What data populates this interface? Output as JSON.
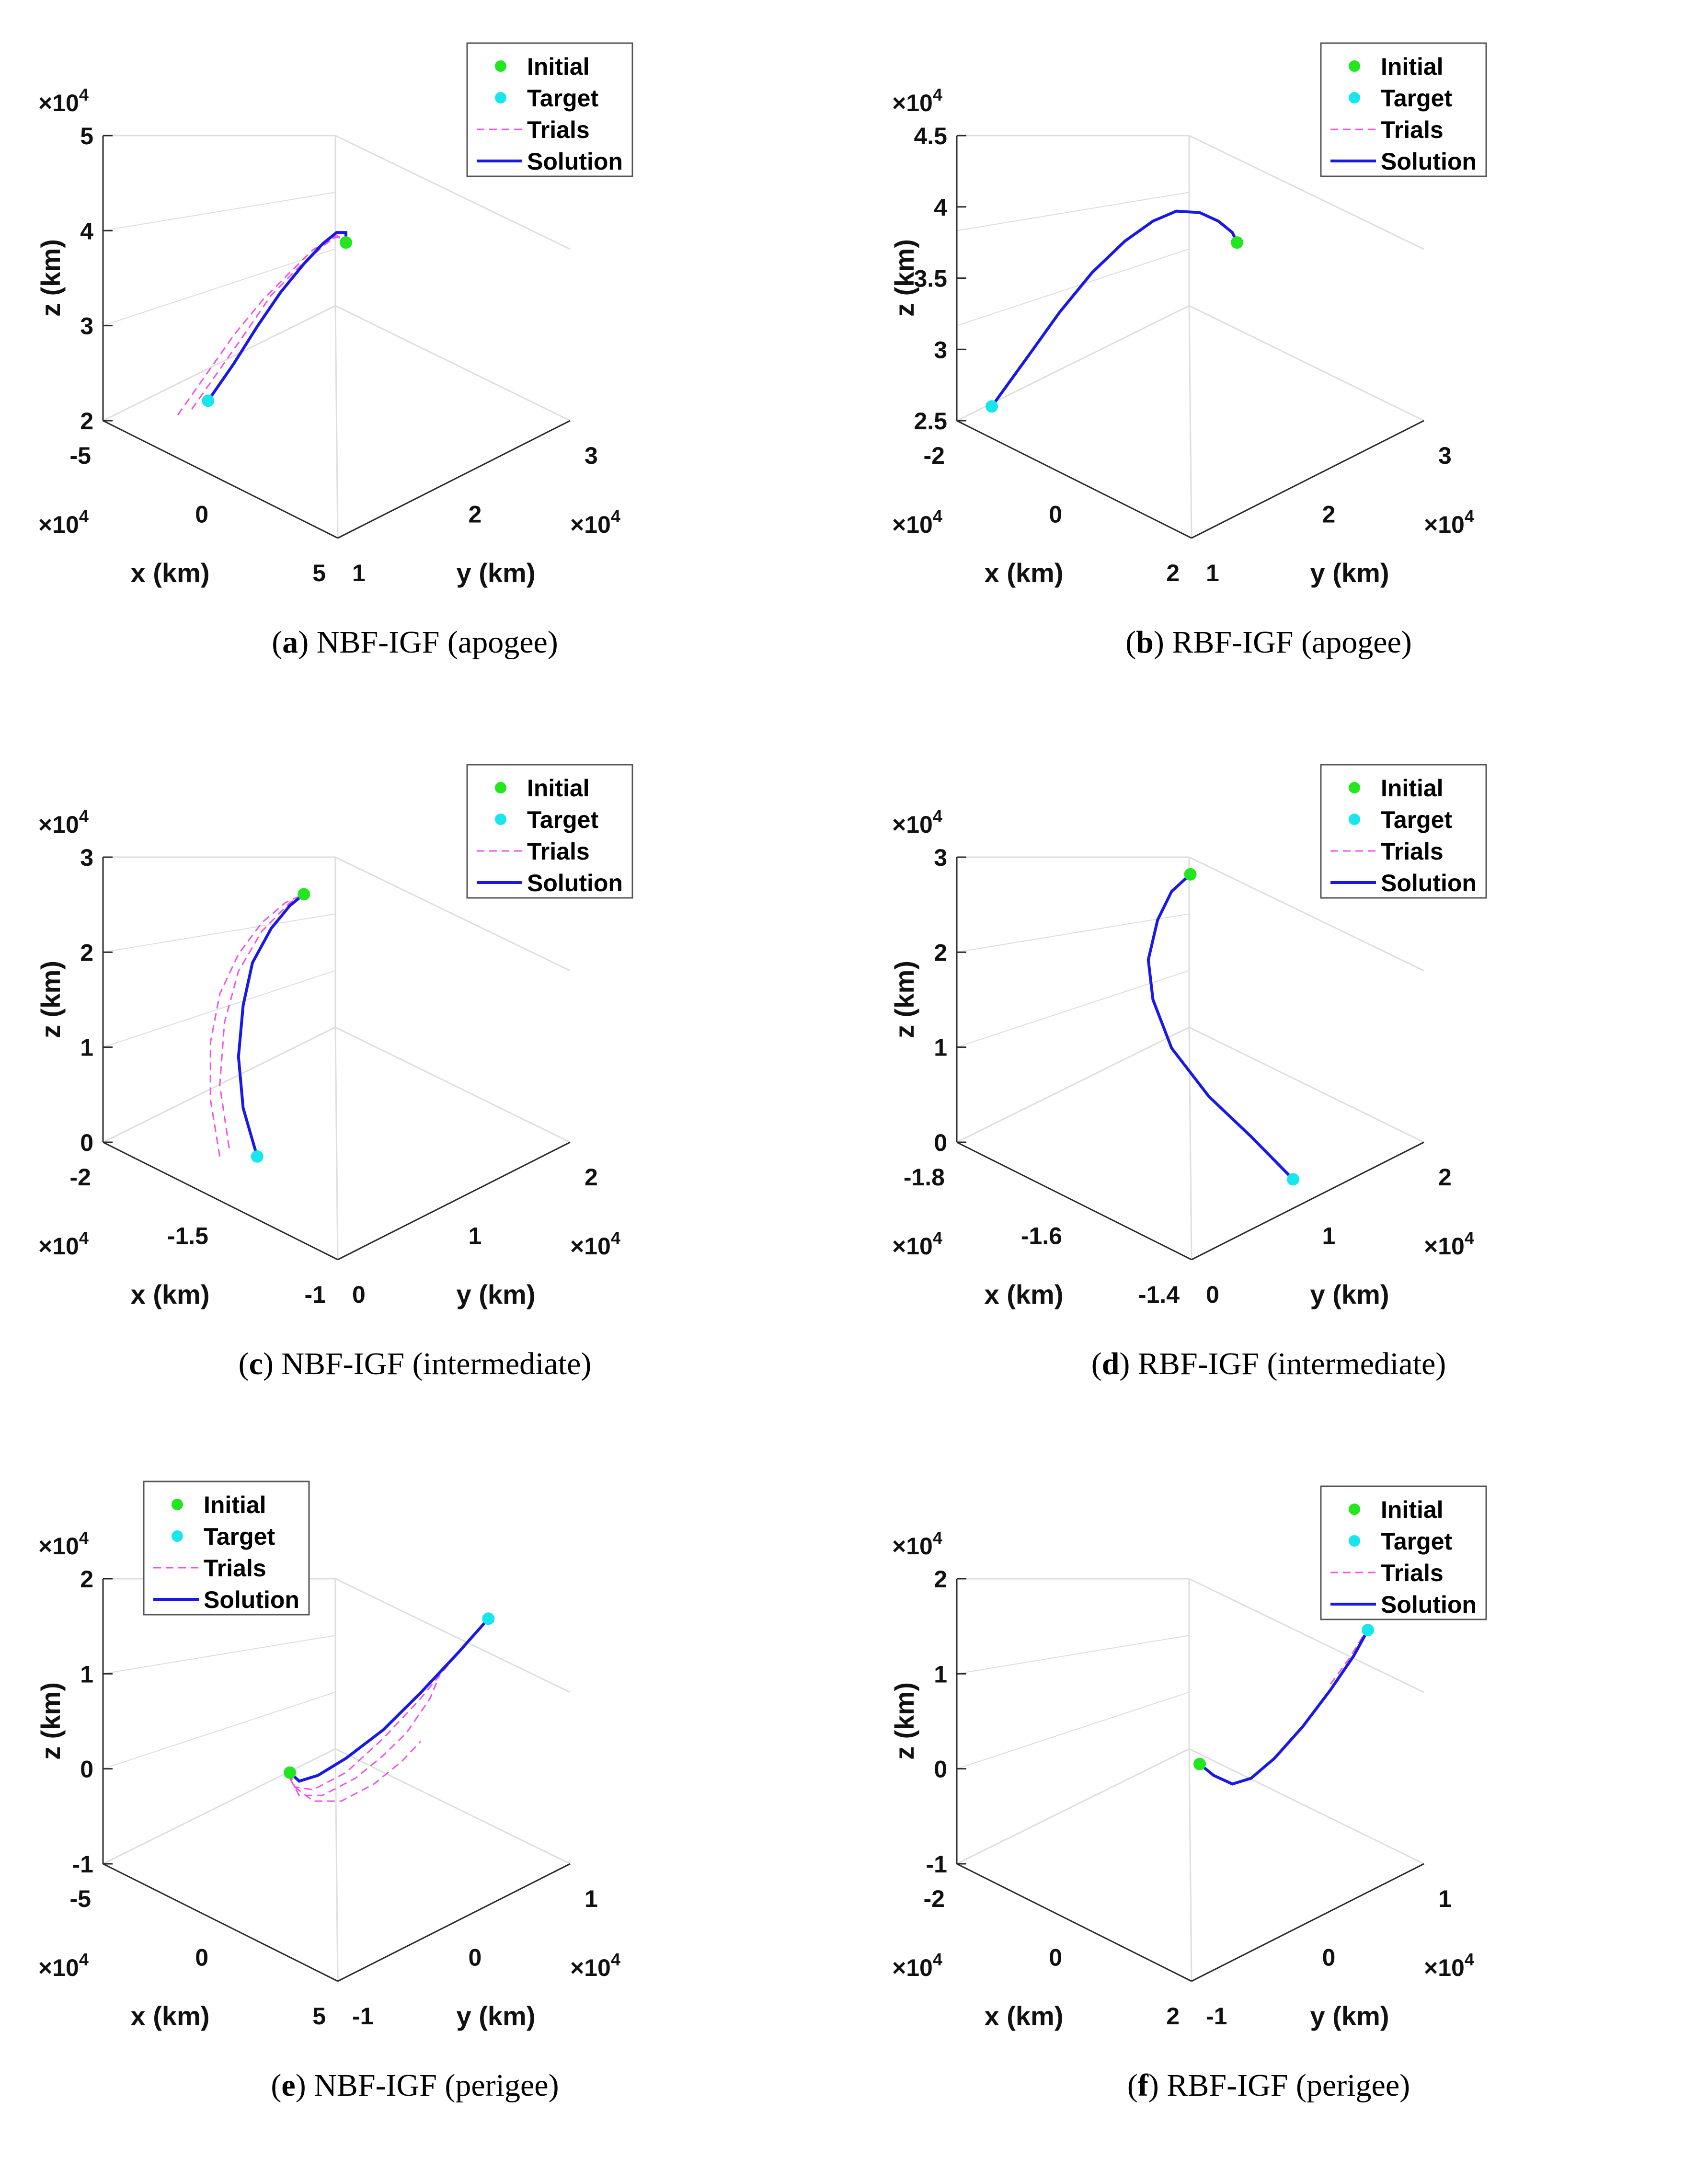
{
  "chart_data": [
    {
      "id": "a",
      "type": "line3d",
      "caption_letter": "a",
      "caption_text": "NBF-IGF (apogee)",
      "xlabel": "x (km)",
      "ylabel": "y (km)",
      "zlabel": "z (km)",
      "xticks": [
        "-5",
        "0",
        "5"
      ],
      "yticks": [
        "1",
        "2",
        "3"
      ],
      "zticks": [
        "2",
        "3",
        "4",
        "5"
      ],
      "x_exponent": "×10^4",
      "y_exponent": "×10^4",
      "z_exponent": "×10^4",
      "xlim": [
        -5,
        5
      ],
      "ylim": [
        1,
        3
      ],
      "zlim": [
        2,
        5
      ],
      "scale": 10000,
      "legend": [
        "Initial",
        "Target",
        "Trials",
        "Solution"
      ],
      "legend_position": "top-right",
      "initial": {
        "u": 0.52,
        "w": 0.625
      },
      "target": {
        "u": 0.225,
        "w": 0.07
      },
      "solution": [
        [
          0.225,
          0.07
        ],
        [
          0.28,
          0.2
        ],
        [
          0.33,
          0.33
        ],
        [
          0.38,
          0.45
        ],
        [
          0.43,
          0.55
        ],
        [
          0.47,
          0.62
        ],
        [
          0.5,
          0.66
        ],
        [
          0.52,
          0.66
        ],
        [
          0.52,
          0.625
        ]
      ],
      "trials": [
        [
          [
            0.16,
            0.02
          ],
          [
            0.22,
            0.16
          ],
          [
            0.28,
            0.3
          ],
          [
            0.34,
            0.42
          ],
          [
            0.4,
            0.52
          ],
          [
            0.45,
            0.6
          ],
          [
            0.49,
            0.64
          ],
          [
            0.51,
            0.645
          ],
          [
            0.52,
            0.625
          ]
        ],
        [
          [
            0.19,
            0.04
          ],
          [
            0.25,
            0.18
          ],
          [
            0.31,
            0.32
          ],
          [
            0.36,
            0.44
          ],
          [
            0.42,
            0.54
          ],
          [
            0.47,
            0.61
          ],
          [
            0.5,
            0.65
          ],
          [
            0.52,
            0.625
          ]
        ]
      ]
    },
    {
      "id": "b",
      "type": "line3d",
      "caption_letter": "b",
      "caption_text": "RBF-IGF (apogee)",
      "xlabel": "x (km)",
      "ylabel": "y (km)",
      "zlabel": "z (km)",
      "xticks": [
        "-2",
        "0",
        "2"
      ],
      "yticks": [
        "1",
        "2",
        "3"
      ],
      "zticks": [
        "2.5",
        "3",
        "3.5",
        "4",
        "4.5"
      ],
      "x_exponent": "×10^4",
      "y_exponent": "×10^4",
      "z_exponent": "×10^4",
      "xlim": [
        -2,
        2
      ],
      "ylim": [
        1,
        3
      ],
      "zlim": [
        2.5,
        4.5
      ],
      "scale": 10000,
      "legend": [
        "Initial",
        "Target",
        "Trials",
        "Solution"
      ],
      "legend_position": "top-right",
      "initial": {
        "u": 0.6,
        "w": 0.625
      },
      "target": {
        "u": 0.075,
        "w": 0.05
      },
      "solution": [
        [
          0.075,
          0.05
        ],
        [
          0.15,
          0.22
        ],
        [
          0.22,
          0.38
        ],
        [
          0.29,
          0.52
        ],
        [
          0.36,
          0.63
        ],
        [
          0.42,
          0.7
        ],
        [
          0.47,
          0.735
        ],
        [
          0.52,
          0.73
        ],
        [
          0.56,
          0.7
        ],
        [
          0.59,
          0.66
        ],
        [
          0.6,
          0.625
        ]
      ],
      "trials": [
        [
          [
            0.075,
            0.05
          ],
          [
            0.15,
            0.22
          ],
          [
            0.22,
            0.38
          ],
          [
            0.29,
            0.52
          ],
          [
            0.36,
            0.63
          ],
          [
            0.42,
            0.7
          ],
          [
            0.47,
            0.735
          ],
          [
            0.52,
            0.73
          ],
          [
            0.56,
            0.7
          ],
          [
            0.59,
            0.66
          ],
          [
            0.6,
            0.625
          ]
        ]
      ]
    },
    {
      "id": "c",
      "type": "line3d",
      "caption_letter": "c",
      "caption_text": "NBF-IGF (intermediate)",
      "xlabel": "x (km)",
      "ylabel": "y (km)",
      "zlabel": "z (km)",
      "xticks": [
        "-2",
        "-1.5",
        "-1"
      ],
      "yticks": [
        "0",
        "1",
        "2"
      ],
      "zticks": [
        "0",
        "1",
        "2",
        "3"
      ],
      "x_exponent": "×10^4",
      "y_exponent": "×10^4",
      "z_exponent": "×10^4",
      "xlim": [
        -2,
        -1
      ],
      "ylim": [
        0,
        2
      ],
      "zlim": [
        0,
        3
      ],
      "scale": 10000,
      "legend": [
        "Initial",
        "Target",
        "Trials",
        "Solution"
      ],
      "legend_position": "top-right",
      "initial": {
        "u": 0.43,
        "w": 0.87
      },
      "target": {
        "u": 0.33,
        "w": -0.05
      },
      "solution": [
        [
          0.33,
          -0.05
        ],
        [
          0.3,
          0.12
        ],
        [
          0.29,
          0.3
        ],
        [
          0.3,
          0.48
        ],
        [
          0.32,
          0.63
        ],
        [
          0.36,
          0.75
        ],
        [
          0.4,
          0.83
        ],
        [
          0.43,
          0.87
        ]
      ],
      "trials": [
        [
          [
            0.25,
            -0.05
          ],
          [
            0.23,
            0.15
          ],
          [
            0.23,
            0.35
          ],
          [
            0.25,
            0.52
          ],
          [
            0.29,
            0.66
          ],
          [
            0.34,
            0.77
          ],
          [
            0.39,
            0.84
          ],
          [
            0.43,
            0.87
          ]
        ],
        [
          [
            0.27,
            -0.02
          ],
          [
            0.25,
            0.2
          ],
          [
            0.26,
            0.42
          ],
          [
            0.29,
            0.6
          ],
          [
            0.34,
            0.74
          ],
          [
            0.4,
            0.84
          ],
          [
            0.43,
            0.87
          ]
        ]
      ]
    },
    {
      "id": "d",
      "type": "line3d",
      "caption_letter": "d",
      "caption_text": "RBF-IGF (intermediate)",
      "xlabel": "x (km)",
      "ylabel": "y (km)",
      "zlabel": "z (km)",
      "xticks": [
        "-1.8",
        "-1.6",
        "-1.4"
      ],
      "yticks": [
        "0",
        "1",
        "2"
      ],
      "zticks": [
        "0",
        "1",
        "2",
        "3"
      ],
      "x_exponent": "×10^4",
      "y_exponent": "×10^4",
      "z_exponent": "×10^4",
      "xlim": [
        -1.8,
        -1.4
      ],
      "ylim": [
        0,
        2
      ],
      "zlim": [
        0,
        3
      ],
      "scale": 10000,
      "legend": [
        "Initial",
        "Target",
        "Trials",
        "Solution"
      ],
      "legend_position": "top-right",
      "initial": {
        "u": 0.5,
        "w": 0.94
      },
      "target": {
        "u": 0.72,
        "w": -0.13
      },
      "solution": [
        [
          0.72,
          -0.13
        ],
        [
          0.63,
          0.02
        ],
        [
          0.54,
          0.16
        ],
        [
          0.46,
          0.33
        ],
        [
          0.42,
          0.5
        ],
        [
          0.41,
          0.64
        ],
        [
          0.43,
          0.78
        ],
        [
          0.46,
          0.88
        ],
        [
          0.5,
          0.94
        ]
      ],
      "trials": [
        [
          [
            0.72,
            -0.13
          ],
          [
            0.63,
            0.02
          ],
          [
            0.54,
            0.16
          ],
          [
            0.46,
            0.33
          ],
          [
            0.42,
            0.5
          ],
          [
            0.41,
            0.64
          ],
          [
            0.43,
            0.78
          ],
          [
            0.46,
            0.88
          ],
          [
            0.5,
            0.94
          ]
        ]
      ]
    },
    {
      "id": "e",
      "type": "line3d",
      "caption_letter": "e",
      "caption_text": "NBF-IGF (perigee)",
      "xlabel": "x (km)",
      "ylabel": "y (km)",
      "zlabel": "z (km)",
      "xticks": [
        "-5",
        "0",
        "5"
      ],
      "yticks": [
        "-1",
        "0",
        "1"
      ],
      "zticks": [
        "-1",
        "0",
        "1",
        "2"
      ],
      "x_exponent": "×10^4",
      "y_exponent": "×10^4",
      "z_exponent": "×10^4",
      "xlim": [
        -5,
        5
      ],
      "ylim": [
        -1,
        1
      ],
      "zlim": [
        -1,
        2
      ],
      "scale": 10000,
      "legend": [
        "Initial",
        "Target",
        "Trials",
        "Solution"
      ],
      "legend_position": "top-left",
      "initial": {
        "u": 0.4,
        "w": 0.32
      },
      "target": {
        "u": 0.825,
        "w": 0.86
      },
      "solution": [
        [
          0.4,
          0.32
        ],
        [
          0.42,
          0.29
        ],
        [
          0.46,
          0.31
        ],
        [
          0.52,
          0.37
        ],
        [
          0.6,
          0.47
        ],
        [
          0.68,
          0.6
        ],
        [
          0.76,
          0.74
        ],
        [
          0.825,
          0.86
        ]
      ],
      "trials": [
        [
          [
            0.4,
            0.32
          ],
          [
            0.41,
            0.27
          ],
          [
            0.45,
            0.26
          ],
          [
            0.52,
            0.32
          ],
          [
            0.6,
            0.44
          ],
          [
            0.68,
            0.58
          ],
          [
            0.75,
            0.72
          ],
          [
            0.825,
            0.86
          ]
        ],
        [
          [
            0.4,
            0.3
          ],
          [
            0.42,
            0.24
          ],
          [
            0.47,
            0.24
          ],
          [
            0.54,
            0.3
          ],
          [
            0.6,
            0.38
          ],
          [
            0.65,
            0.46
          ],
          [
            0.7,
            0.58
          ],
          [
            0.72,
            0.66
          ]
        ],
        [
          [
            0.41,
            0.27
          ],
          [
            0.45,
            0.22
          ],
          [
            0.51,
            0.22
          ],
          [
            0.58,
            0.28
          ],
          [
            0.64,
            0.36
          ],
          [
            0.68,
            0.43
          ]
        ]
      ]
    },
    {
      "id": "f",
      "type": "line3d",
      "caption_letter": "f",
      "caption_text": "RBF-IGF (perigee)",
      "xlabel": "x (km)",
      "ylabel": "y (km)",
      "zlabel": "z (km)",
      "xticks": [
        "-2",
        "0",
        "2"
      ],
      "yticks": [
        "-1",
        "0",
        "1"
      ],
      "zticks": [
        "-1",
        "0",
        "1",
        "2"
      ],
      "x_exponent": "×10^4",
      "y_exponent": "×10^4",
      "z_exponent": "×10^4",
      "xlim": [
        -2,
        2
      ],
      "ylim": [
        -1,
        1
      ],
      "zlim": [
        -1,
        2
      ],
      "scale": 10000,
      "legend": [
        "Initial",
        "Target",
        "Trials",
        "Solution"
      ],
      "legend_position": "top-right",
      "initial": {
        "u": 0.52,
        "w": 0.35
      },
      "target": {
        "u": 0.88,
        "w": 0.82
      },
      "solution": [
        [
          0.52,
          0.35
        ],
        [
          0.55,
          0.31
        ],
        [
          0.59,
          0.28
        ],
        [
          0.63,
          0.3
        ],
        [
          0.68,
          0.37
        ],
        [
          0.74,
          0.48
        ],
        [
          0.8,
          0.61
        ],
        [
          0.85,
          0.73
        ],
        [
          0.88,
          0.82
        ]
      ],
      "trials": [
        [
          [
            0.52,
            0.35
          ],
          [
            0.55,
            0.31
          ],
          [
            0.59,
            0.28
          ],
          [
            0.63,
            0.3
          ],
          [
            0.68,
            0.37
          ],
          [
            0.74,
            0.48
          ],
          [
            0.8,
            0.61
          ],
          [
            0.85,
            0.73
          ],
          [
            0.88,
            0.82
          ]
        ],
        [
          [
            0.8,
            0.63
          ],
          [
            0.84,
            0.72
          ],
          [
            0.87,
            0.8
          ],
          [
            0.88,
            0.82
          ]
        ]
      ]
    }
  ],
  "colors": {
    "initial": "#22e61e",
    "target": "#18e6ee",
    "trials": "#ee55e6",
    "solution": "#1818e8",
    "box": "#2b2b2b",
    "grid": "#dedede"
  }
}
